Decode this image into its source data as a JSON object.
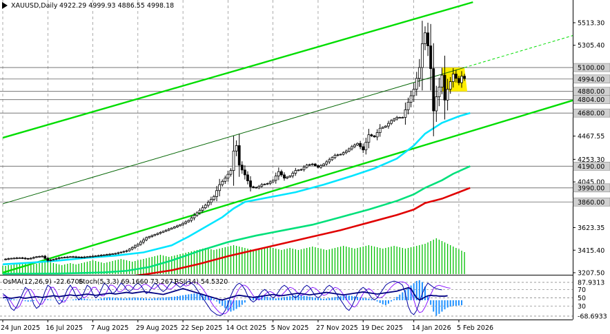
{
  "header": {
    "symbol_label": "XAUUSD,Daily",
    "ohlc_label": "4922.29 4999.93 4886.55 4998.18"
  },
  "indicator_header": {
    "osma_label": "OsMA(12,26,9) -22.6706",
    "stoch_label": "Stoch(5,3,3) 69.1660 73.2671",
    "rsi_label": "RSI(14) 54.5320"
  },
  "colors": {
    "channel": "#00dd00",
    "ema_fast": "#00e5ff",
    "ema_mid": "#00e07a",
    "ema_slow": "#e00000",
    "candles": "#000000",
    "volume": "#00c000",
    "osma": "#1e90ff",
    "highlight": "#ffee00",
    "stoch_main": "#0000a0",
    "stoch_signal": "#8000ff",
    "rsi": "#000080"
  },
  "chart_data": {
    "type": "candlestick",
    "symbol": "XAUUSD",
    "timeframe": "Daily",
    "last_bar": {
      "open": 4922.29,
      "high": 4999.93,
      "low": 4886.55,
      "close": 4998.18
    },
    "y_ticks": [
      5513.3,
      5305.4,
      5100.0,
      4994.0,
      4880.0,
      4804.0,
      4680.0,
      4467.55,
      4253.3,
      4190.0,
      4045.0,
      3990.0,
      3860.0,
      3623.35,
      3415.4,
      3207.5
    ],
    "y_tick_labels": [
      "5513.30",
      "5305.40",
      "5100.00",
      "4994.00",
      "4880.00",
      "4804.00",
      "4680.00",
      "4467.55",
      "4253.30",
      "4190.00",
      "4045.00",
      "3990.00",
      "3860.00",
      "3623.35",
      "3415.40",
      "3207.50"
    ],
    "y_tick_highlighted": [
      "5100.00",
      "4994.00",
      "4880.00",
      "4804.00",
      "4680.00",
      "4190.00",
      "3990.00",
      "3860.00"
    ],
    "horizontal_levels": [
      5100.0,
      4994.0,
      4880.0,
      4804.0,
      4680.0,
      4190.0,
      3990.0,
      3860.0
    ],
    "x_tick_labels": [
      "24 Jun 2025",
      "16 Jul 2025",
      "7 Aug 2025",
      "29 Aug 2025",
      "22 Sep 2025",
      "14 Oct 2025",
      "5 Nov 2025",
      "27 Nov 2025",
      "19 Dec 2025",
      "14 Jan 2026",
      "5 Feb 2026"
    ],
    "x_tick_bar_index": [
      0,
      16,
      32,
      48,
      64,
      80,
      96,
      112,
      128,
      146,
      162
    ],
    "close_series": [
      [
        0,
        3330
      ],
      [
        3,
        3340
      ],
      [
        6,
        3345
      ],
      [
        9,
        3335
      ],
      [
        12,
        3355
      ],
      [
        14,
        3360
      ],
      [
        16,
        3320
      ],
      [
        18,
        3330
      ],
      [
        20,
        3345
      ],
      [
        24,
        3355
      ],
      [
        28,
        3350
      ],
      [
        32,
        3360
      ],
      [
        36,
        3372
      ],
      [
        40,
        3385
      ],
      [
        44,
        3410
      ],
      [
        48,
        3470
      ],
      [
        51,
        3530
      ],
      [
        54,
        3560
      ],
      [
        57,
        3590
      ],
      [
        60,
        3620
      ],
      [
        63,
        3650
      ],
      [
        66,
        3690
      ],
      [
        69,
        3760
      ],
      [
        72,
        3830
      ],
      [
        75,
        3910
      ],
      [
        77,
        4020
      ],
      [
        79,
        4080
      ],
      [
        81,
        4150
      ],
      [
        82,
        4330
      ],
      [
        83,
        4380
      ],
      [
        84,
        4200
      ],
      [
        86,
        4110
      ],
      [
        88,
        4000
      ],
      [
        90,
        3990
      ],
      [
        92,
        4020
      ],
      [
        94,
        4030
      ],
      [
        96,
        4060
      ],
      [
        98,
        4140
      ],
      [
        100,
        4080
      ],
      [
        102,
        4100
      ],
      [
        104,
        4150
      ],
      [
        106,
        4160
      ],
      [
        108,
        4200
      ],
      [
        110,
        4210
      ],
      [
        112,
        4180
      ],
      [
        114,
        4210
      ],
      [
        116,
        4250
      ],
      [
        118,
        4290
      ],
      [
        120,
        4300
      ],
      [
        122,
        4330
      ],
      [
        124,
        4370
      ],
      [
        126,
        4400
      ],
      [
        128,
        4340
      ],
      [
        130,
        4480
      ],
      [
        132,
        4460
      ],
      [
        134,
        4540
      ],
      [
        136,
        4560
      ],
      [
        138,
        4610
      ],
      [
        140,
        4640
      ],
      [
        142,
        4640
      ],
      [
        144,
        4780
      ],
      [
        146,
        4900
      ],
      [
        148,
        5100
      ],
      [
        149,
        5320
      ],
      [
        150,
        5420
      ],
      [
        151,
        5300
      ],
      [
        152,
        5090
      ],
      [
        153,
        4700
      ],
      [
        154,
        4830
      ],
      [
        155,
        4920
      ],
      [
        156,
        5030
      ],
      [
        157,
        4800
      ],
      [
        158,
        4900
      ],
      [
        159,
        4970
      ],
      [
        160,
        5040
      ],
      [
        161,
        5000
      ],
      [
        162,
        4960
      ],
      [
        163,
        5020
      ],
      [
        164,
        4998
      ]
    ],
    "channel_lines": [
      {
        "name": "upper",
        "p1": [
          0,
          4452
        ],
        "p2": [
          167,
          5703
        ]
      },
      {
        "name": "lower",
        "p1": [
          0,
          3208
        ],
        "p2": [
          203,
          4801
        ]
      },
      {
        "name": "median",
        "p1": [
          0,
          3843
        ],
        "p2": [
          164,
          5100
        ]
      }
    ],
    "ema_fast": [
      [
        0,
        3285
      ],
      [
        10,
        3300
      ],
      [
        20,
        3320
      ],
      [
        30,
        3345
      ],
      [
        40,
        3365
      ],
      [
        50,
        3395
      ],
      [
        60,
        3460
      ],
      [
        66,
        3540
      ],
      [
        72,
        3630
      ],
      [
        78,
        3720
      ],
      [
        82,
        3800
      ],
      [
        86,
        3860
      ],
      [
        94,
        3900
      ],
      [
        104,
        3950
      ],
      [
        114,
        4020
      ],
      [
        124,
        4100
      ],
      [
        132,
        4170
      ],
      [
        140,
        4260
      ],
      [
        146,
        4380
      ],
      [
        150,
        4490
      ],
      [
        156,
        4590
      ],
      [
        162,
        4650
      ],
      [
        166,
        4680
      ]
    ],
    "ema_mid": [
      [
        0,
        3198
      ],
      [
        20,
        3200
      ],
      [
        36,
        3210
      ],
      [
        44,
        3225
      ],
      [
        52,
        3260
      ],
      [
        60,
        3320
      ],
      [
        70,
        3410
      ],
      [
        80,
        3490
      ],
      [
        90,
        3550
      ],
      [
        100,
        3600
      ],
      [
        110,
        3650
      ],
      [
        120,
        3720
      ],
      [
        130,
        3790
      ],
      [
        140,
        3870
      ],
      [
        146,
        3930
      ],
      [
        150,
        3990
      ],
      [
        156,
        4060
      ],
      [
        160,
        4120
      ],
      [
        166,
        4190
      ]
    ],
    "ema_slow": [
      [
        40,
        3160
      ],
      [
        50,
        3190
      ],
      [
        60,
        3230
      ],
      [
        70,
        3290
      ],
      [
        80,
        3360
      ],
      [
        90,
        3420
      ],
      [
        100,
        3480
      ],
      [
        110,
        3540
      ],
      [
        120,
        3600
      ],
      [
        130,
        3670
      ],
      [
        140,
        3740
      ],
      [
        146,
        3790
      ],
      [
        150,
        3850
      ],
      [
        156,
        3890
      ],
      [
        162,
        3950
      ],
      [
        166,
        3990
      ]
    ],
    "highlight_zone": {
      "price_top": 5100,
      "price_bottom": 4880,
      "bar_from": 156,
      "bar_to": 163
    },
    "volume": [
      12,
      12,
      13,
      13,
      14,
      14,
      15,
      15,
      16,
      14,
      13,
      14,
      15,
      16,
      17,
      18,
      20,
      17,
      16,
      15,
      14,
      13,
      14,
      15,
      16,
      15,
      14,
      15,
      16,
      17,
      18,
      19,
      20,
      19,
      18,
      17,
      16,
      17,
      18,
      19,
      20,
      21,
      22,
      21,
      20,
      19,
      18,
      19,
      20,
      21,
      22,
      23,
      24,
      25,
      26,
      27,
      28,
      27,
      26,
      25,
      26,
      27,
      28,
      29,
      30,
      31,
      32,
      33,
      34,
      35,
      36,
      37,
      38,
      37,
      36,
      35,
      36,
      37,
      38,
      39,
      40,
      41,
      42,
      41,
      40,
      39,
      38,
      37,
      36,
      35,
      34,
      35,
      36,
      37,
      38,
      39,
      38,
      37,
      36,
      35,
      36,
      37,
      38,
      37,
      36,
      35,
      36,
      37,
      38,
      39,
      40,
      39,
      38,
      37,
      36,
      35,
      36,
      37,
      38,
      39,
      40,
      41,
      40,
      39,
      38,
      37,
      38,
      39,
      40,
      41,
      42,
      41,
      40,
      39,
      38,
      37,
      38,
      39,
      40,
      41,
      40,
      39,
      38,
      37,
      38,
      39,
      40,
      41,
      42,
      43,
      44,
      46,
      48,
      50,
      52,
      50,
      48,
      46,
      44,
      42,
      40,
      38,
      36,
      34,
      32
    ],
    "osma_ticks": [
      "87.9313",
      "-68.6933"
    ],
    "osc_levels": [
      "70",
      "50",
      "30"
    ],
    "osma": [
      0,
      2,
      4,
      5,
      4,
      2,
      0,
      -2,
      -4,
      -6,
      -5,
      -3,
      -1,
      2,
      4,
      6,
      5,
      3,
      1,
      -1,
      -3,
      -4,
      -3,
      -1,
      1,
      3,
      5,
      7,
      8,
      7,
      5,
      3,
      2,
      3,
      5,
      8,
      10,
      12,
      13,
      12,
      11,
      10,
      9,
      8,
      9,
      10,
      11,
      12,
      11,
      10,
      9,
      8,
      7,
      8,
      9,
      10,
      11,
      12,
      13,
      14,
      15,
      16,
      18,
      20,
      22,
      24,
      26,
      28,
      30,
      29,
      27,
      25,
      22,
      18,
      12,
      5,
      -5,
      -15,
      -25,
      -35,
      -45,
      -50,
      -45,
      -38,
      -30,
      -20,
      -10,
      0,
      8,
      14,
      18,
      20,
      19,
      17,
      15,
      12,
      10,
      8,
      10,
      12,
      14,
      16,
      18,
      20,
      22,
      24,
      22,
      20,
      18,
      16,
      14,
      12,
      10,
      8,
      6,
      8,
      10,
      12,
      14,
      16,
      18,
      20,
      22,
      21,
      19,
      17,
      15,
      13,
      11,
      9,
      7,
      5,
      3,
      -5,
      -12,
      -18,
      -22,
      -15,
      -5,
      5,
      15,
      25,
      35,
      45,
      55,
      65,
      75,
      85,
      88,
      80,
      60,
      20,
      -20,
      -50,
      -68,
      -60,
      -50,
      -40,
      -32,
      -28,
      -25,
      -24,
      -23,
      -22
    ],
    "stoch_main": [
      60,
      55,
      40,
      25,
      20,
      30,
      45,
      60,
      75,
      70,
      55,
      35,
      25,
      30,
      45,
      65,
      80,
      75,
      60,
      45,
      35,
      40,
      55,
      70,
      80,
      70,
      55,
      45,
      50,
      65,
      80,
      75,
      60,
      50,
      55,
      70,
      85,
      80,
      70,
      60,
      65,
      75,
      85,
      80,
      70,
      65,
      70,
      80,
      85,
      80,
      70,
      60,
      65,
      75,
      85,
      80,
      70,
      65,
      70,
      80,
      88,
      85,
      80,
      75,
      80,
      85,
      90,
      85,
      80,
      70,
      60,
      50,
      40,
      30,
      20,
      15,
      10,
      8,
      10,
      20,
      35,
      55,
      70,
      80,
      85,
      80,
      70,
      55,
      45,
      40,
      45,
      55,
      65,
      70,
      65,
      55,
      50,
      55,
      65,
      75,
      80,
      75,
      65,
      55,
      50,
      55,
      65,
      75,
      80,
      75,
      65,
      55,
      50,
      55,
      65,
      75,
      80,
      75,
      65,
      55,
      45,
      35,
      25,
      20,
      30,
      45,
      60,
      70,
      75,
      70,
      60,
      50,
      45,
      50,
      60,
      70,
      80,
      85,
      88,
      90,
      88,
      85,
      80,
      60,
      30,
      15,
      10,
      20,
      40,
      60,
      75,
      85,
      80,
      75,
      72,
      70,
      69
    ],
    "stoch_signal": [
      55,
      55,
      50,
      40,
      30,
      25,
      30,
      45,
      60,
      70,
      70,
      60,
      45,
      35,
      35,
      45,
      60,
      75,
      75,
      65,
      50,
      40,
      40,
      50,
      65,
      75,
      75,
      65,
      55,
      50,
      55,
      65,
      75,
      75,
      65,
      55,
      55,
      65,
      80,
      80,
      75,
      65,
      65,
      70,
      80,
      80,
      75,
      70,
      70,
      75,
      82,
      82,
      78,
      72,
      72,
      78,
      84,
      82,
      76,
      70,
      72,
      78,
      85,
      86,
      82,
      78,
      80,
      85,
      88,
      86,
      80,
      72,
      62,
      52,
      40,
      30,
      22,
      15,
      12,
      12,
      18,
      30,
      45,
      60,
      72,
      80,
      80,
      75,
      65,
      55,
      48,
      45,
      50,
      57,
      63,
      65,
      62,
      56,
      53,
      56,
      63,
      70,
      75,
      73,
      67,
      60,
      56,
      58,
      63,
      70,
      75,
      73,
      67,
      60,
      56,
      58,
      63,
      70,
      75,
      73,
      67,
      58,
      48,
      38,
      30,
      28,
      35,
      48,
      60,
      68,
      72,
      68,
      60,
      52,
      50,
      53,
      60,
      68,
      76,
      82,
      86,
      88,
      88,
      86,
      80,
      65,
      45,
      25,
      15,
      17,
      28,
      43,
      58,
      72,
      78,
      80,
      78,
      76,
      74,
      73
    ],
    "rsi": [
      50,
      51,
      50,
      49,
      50,
      51,
      52,
      50,
      49,
      50,
      51,
      52,
      53,
      52,
      51,
      52,
      53,
      54,
      55,
      54,
      53,
      54,
      55,
      56,
      57,
      56,
      55,
      56,
      57,
      58,
      59,
      58,
      57,
      56,
      57,
      58,
      59,
      60,
      61,
      60,
      59,
      60,
      61,
      62,
      63,
      62,
      61,
      62,
      63,
      64,
      65,
      64,
      63,
      62,
      61,
      60,
      59,
      58,
      60,
      62,
      64,
      66,
      68,
      70,
      72,
      70,
      68,
      66,
      64,
      62,
      60,
      58,
      56,
      54,
      52,
      50,
      48,
      46,
      45,
      47,
      49,
      51,
      53,
      55,
      56,
      55,
      54,
      53,
      52,
      51,
      52,
      53,
      54,
      55,
      56,
      57,
      58,
      57,
      56,
      55,
      56,
      57,
      58,
      59,
      60,
      61,
      60,
      59,
      58,
      57,
      58,
      59,
      60,
      61,
      62,
      63,
      62,
      61,
      60,
      59,
      58,
      57,
      58,
      59,
      60,
      61,
      62,
      63,
      64,
      63,
      62,
      61,
      60,
      59,
      60,
      61,
      62,
      63,
      64,
      65,
      66,
      68,
      70,
      72,
      74,
      72,
      60,
      50,
      45,
      48,
      52,
      55,
      56,
      55,
      55,
      54,
      54,
      54,
      55
    ]
  }
}
